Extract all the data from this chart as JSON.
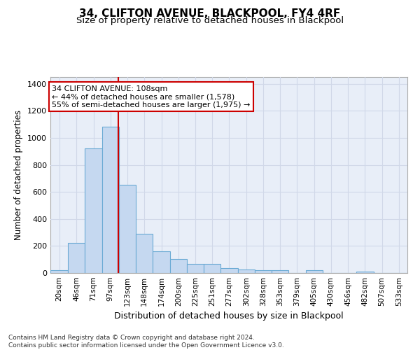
{
  "title_line1": "34, CLIFTON AVENUE, BLACKPOOL, FY4 4RF",
  "title_line2": "Size of property relative to detached houses in Blackpool",
  "xlabel": "Distribution of detached houses by size in Blackpool",
  "ylabel": "Number of detached properties",
  "bar_color": "#c5d8f0",
  "bar_edge_color": "#6aaad4",
  "background_color": "#e8eef8",
  "grid_color": "#d0d8e8",
  "annotation_box_color": "#cc0000",
  "annotation_line1": "34 CLIFTON AVENUE: 108sqm",
  "annotation_line2": "← 44% of detached houses are smaller (1,578)",
  "annotation_line3": "55% of semi-detached houses are larger (1,975) →",
  "property_line_x": 108,
  "property_line_color": "#cc0000",
  "tick_labels": [
    "20sqm",
    "46sqm",
    "71sqm",
    "97sqm",
    "123sqm",
    "148sqm",
    "174sqm",
    "200sqm",
    "225sqm",
    "251sqm",
    "277sqm",
    "302sqm",
    "328sqm",
    "353sqm",
    "379sqm",
    "405sqm",
    "430sqm",
    "456sqm",
    "482sqm",
    "507sqm",
    "533sqm"
  ],
  "bin_edges": [
    7.5,
    33.5,
    58.5,
    83.5,
    108.5,
    133.5,
    158.5,
    183.5,
    208.5,
    233.5,
    258.5,
    283.5,
    308.5,
    333.5,
    358.5,
    383.5,
    408.5,
    433.5,
    458.5,
    483.5,
    508.5,
    533.5
  ],
  "bar_heights": [
    20,
    225,
    920,
    1080,
    650,
    290,
    158,
    105,
    68,
    68,
    35,
    25,
    20,
    20,
    0,
    20,
    0,
    0,
    12,
    0,
    0
  ],
  "ylim": [
    0,
    1450
  ],
  "yticks": [
    0,
    200,
    400,
    600,
    800,
    1000,
    1200,
    1400
  ],
  "footer_text": "Contains HM Land Registry data © Crown copyright and database right 2024.\nContains public sector information licensed under the Open Government Licence v3.0.",
  "figsize": [
    6.0,
    5.0
  ],
  "dpi": 100
}
